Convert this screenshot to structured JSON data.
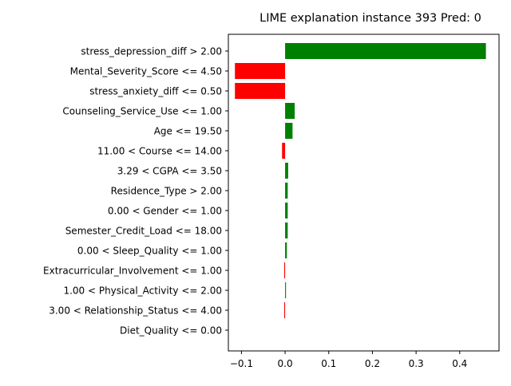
{
  "chart_data": {
    "type": "bar",
    "orientation": "horizontal",
    "title": "LIME explanation instance 393 Pred: 0",
    "xlabel": "",
    "ylabel": "",
    "xlim": [
      -0.13,
      0.49
    ],
    "xticks": [
      -0.1,
      0.0,
      0.1,
      0.2,
      0.3,
      0.4
    ],
    "xtick_labels": [
      "−0.1",
      "0.0",
      "0.1",
      "0.2",
      "0.3",
      "0.4"
    ],
    "grid": false,
    "legend": "none",
    "positive_color": "#008000",
    "negative_color": "#ff0000",
    "categories": [
      "stress_depression_diff > 2.00",
      "Mental_Severity_Score <= 4.50",
      "stress_anxiety_diff <= 0.50",
      "Counseling_Service_Use <= 1.00",
      "Age <= 19.50",
      "11.00 < Course <= 14.00",
      "3.29 < CGPA <= 3.50",
      "Residence_Type > 2.00",
      "0.00 < Gender <= 1.00",
      "Semester_Credit_Load <= 18.00",
      "0.00 < Sleep_Quality <= 1.00",
      "Extracurricular_Involvement <= 1.00",
      "1.00 < Physical_Activity <= 2.00",
      "3.00 < Relationship_Status <= 4.00",
      "Diet_Quality <= 0.00"
    ],
    "values": [
      0.46,
      -0.115,
      -0.115,
      0.022,
      0.017,
      -0.007,
      0.007,
      0.006,
      0.006,
      0.006,
      0.004,
      -0.002,
      0.002,
      -0.002,
      0.0
    ]
  }
}
